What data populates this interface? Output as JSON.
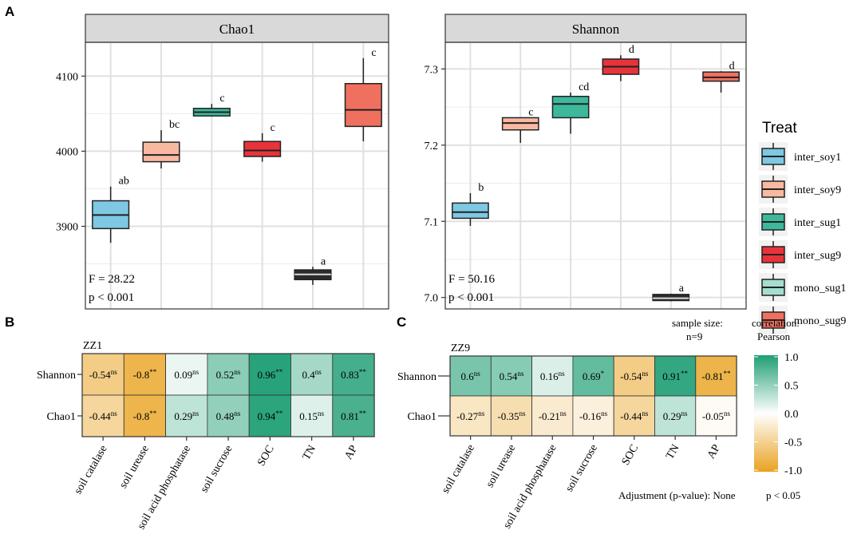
{
  "chart_data": [
    {
      "panel": "A",
      "type": "box",
      "title": "Chao1",
      "ylim": [
        3790,
        4145
      ],
      "yticks": [
        3900,
        4000,
        4100
      ],
      "categories": [
        "inter_soy1",
        "inter_soy9",
        "inter_sug1",
        "inter_sug9",
        "mono_sug1",
        "mono_sug9"
      ],
      "boxes": [
        {
          "group": "inter_soy1",
          "min": 3878,
          "q1": 3897,
          "median": 3915,
          "q3": 3934,
          "max": 3953,
          "label": "ab"
        },
        {
          "group": "inter_soy9",
          "min": 3977,
          "q1": 3986,
          "median": 3995,
          "q3": 4012,
          "max": 4028,
          "label": "bc"
        },
        {
          "group": "inter_sug1",
          "min": 4046,
          "q1": 4047,
          "median": 4052,
          "q3": 4057,
          "max": 4063,
          "label": "c"
        },
        {
          "group": "inter_sug9",
          "min": 3986,
          "q1": 3993,
          "median": 4001,
          "q3": 4013,
          "max": 4024,
          "label": "c"
        },
        {
          "group": "mono_sug1",
          "min": 3822,
          "q1": 3829,
          "median": 3836,
          "q3": 3842,
          "max": 3846,
          "label": "a"
        },
        {
          "group": "mono_sug9",
          "min": 4013,
          "q1": 4033,
          "median": 4055,
          "q3": 4090,
          "max": 4124,
          "label": "c"
        }
      ],
      "stat_text": [
        "F = 28.22",
        "p < 0.001"
      ]
    },
    {
      "panel": "A",
      "type": "box",
      "title": "Shannon",
      "ylim": [
        6.985,
        7.335
      ],
      "yticks": [
        7.0,
        7.1,
        7.2,
        7.3
      ],
      "ytick_labels": [
        "7.0",
        "7.1",
        "7.2",
        "7.3"
      ],
      "categories": [
        "inter_soy1",
        "inter_soy9",
        "inter_sug1",
        "inter_sug9",
        "mono_sug1",
        "mono_sug9"
      ],
      "boxes": [
        {
          "group": "inter_soy1",
          "min": 7.094,
          "q1": 7.104,
          "median": 7.112,
          "q3": 7.124,
          "max": 7.137,
          "label": "b"
        },
        {
          "group": "inter_soy9",
          "min": 7.203,
          "q1": 7.22,
          "median": 7.229,
          "q3": 7.236,
          "max": 7.236,
          "label": "c"
        },
        {
          "group": "inter_sug1",
          "min": 7.215,
          "q1": 7.236,
          "median": 7.254,
          "q3": 7.264,
          "max": 7.269,
          "label": "cd"
        },
        {
          "group": "inter_sug9",
          "min": 7.284,
          "q1": 7.293,
          "median": 7.303,
          "q3": 7.313,
          "max": 7.318,
          "label": "d"
        },
        {
          "group": "mono_sug1",
          "min": 6.995,
          "q1": 6.996,
          "median": 6.999,
          "q3": 7.004,
          "max": 7.005,
          "label": "a"
        },
        {
          "group": "mono_sug9",
          "min": 7.269,
          "q1": 7.284,
          "median": 7.289,
          "q3": 7.296,
          "max": 7.297,
          "label": "d"
        }
      ],
      "stat_text": [
        "F = 50.16",
        "p < 0.001"
      ]
    },
    {
      "panel": "B",
      "type": "heatmap",
      "title": "ZZ1",
      "rows": [
        "Shannon",
        "Chao1"
      ],
      "columns": [
        "soil catalase",
        "soil urease",
        "soil acid phosphatase",
        "soil sucrose",
        "SOC",
        "TN",
        "AP"
      ],
      "cells": [
        [
          {
            "value": -0.54,
            "text": "-0.54",
            "sig": "ns"
          },
          {
            "value": -0.8,
            "text": "-0.8",
            "sig": "**"
          },
          {
            "value": 0.09,
            "text": "0.09",
            "sig": "ns"
          },
          {
            "value": 0.52,
            "text": "0.52",
            "sig": "ns"
          },
          {
            "value": 0.96,
            "text": "0.96",
            "sig": "**"
          },
          {
            "value": 0.4,
            "text": "0.4",
            "sig": "ns"
          },
          {
            "value": 0.83,
            "text": "0.83",
            "sig": "**"
          }
        ],
        [
          {
            "value": -0.44,
            "text": "-0.44",
            "sig": "ns"
          },
          {
            "value": -0.8,
            "text": "-0.8",
            "sig": "**"
          },
          {
            "value": 0.29,
            "text": "0.29",
            "sig": "ns"
          },
          {
            "value": 0.48,
            "text": "0.48",
            "sig": "ns"
          },
          {
            "value": 0.94,
            "text": "0.94",
            "sig": "**"
          },
          {
            "value": 0.15,
            "text": "0.15",
            "sig": "ns"
          },
          {
            "value": 0.81,
            "text": "0.81",
            "sig": "**"
          }
        ]
      ]
    },
    {
      "panel": "C",
      "type": "heatmap",
      "title": "ZZ9",
      "rows": [
        "Shannon",
        "Chao1"
      ],
      "columns": [
        "soil catalase",
        "soil urease",
        "soil acid phosphatase",
        "soil sucrose",
        "SOC",
        "TN",
        "AP"
      ],
      "cells": [
        [
          {
            "value": 0.6,
            "text": "0.6",
            "sig": "ns"
          },
          {
            "value": 0.54,
            "text": "0.54",
            "sig": "ns"
          },
          {
            "value": 0.16,
            "text": "0.16",
            "sig": "ns"
          },
          {
            "value": 0.69,
            "text": "0.69",
            "sig": "*"
          },
          {
            "value": -0.54,
            "text": "-0.54",
            "sig": "ns"
          },
          {
            "value": 0.91,
            "text": "0.91",
            "sig": "**"
          },
          {
            "value": -0.81,
            "text": "-0.81",
            "sig": "**"
          }
        ],
        [
          {
            "value": -0.27,
            "text": "-0.27",
            "sig": "ns"
          },
          {
            "value": -0.35,
            "text": "-0.35",
            "sig": "ns"
          },
          {
            "value": -0.21,
            "text": "-0.21",
            "sig": "ns"
          },
          {
            "value": -0.16,
            "text": "-0.16",
            "sig": "ns"
          },
          {
            "value": -0.44,
            "text": "-0.44",
            "sig": "ns"
          },
          {
            "value": 0.29,
            "text": "0.29",
            "sig": "ns"
          },
          {
            "value": -0.05,
            "text": "-0.05",
            "sig": "ns"
          }
        ]
      ]
    }
  ],
  "panel_labels": {
    "a": "A",
    "b": "B",
    "c": "C"
  },
  "legend": {
    "title": "Treat",
    "items": [
      {
        "label": "inter_soy1",
        "color": "#7ec8e3"
      },
      {
        "label": "inter_soy9",
        "color": "#f9b9a0"
      },
      {
        "label": "inter_sug1",
        "color": "#3db89a"
      },
      {
        "label": "inter_sug9",
        "color": "#e8333a"
      },
      {
        "label": "mono_sug1",
        "color": "#a5ddd0"
      },
      {
        "label": "mono_sug9",
        "color": "#f07060"
      }
    ]
  },
  "mono_sug1_color": "#2b2b2b",
  "colorbar": {
    "title_line1": "correlation:",
    "title_line2": "Pearson",
    "ticks": [
      1.0,
      0.5,
      0.0,
      -0.5,
      -1.0
    ],
    "tick_labels": [
      "1.0",
      "0.5",
      "0.0",
      "-0.5",
      "-1.0"
    ],
    "high_color": "#1f9e74",
    "mid_color": "#ffffff",
    "low_color": "#e8a21f"
  },
  "notes": {
    "sample_size_line1": "sample size:",
    "sample_size_line2": "n=9",
    "adjustment": "Adjustment (p-value): None",
    "pval": "p < 0.05"
  }
}
